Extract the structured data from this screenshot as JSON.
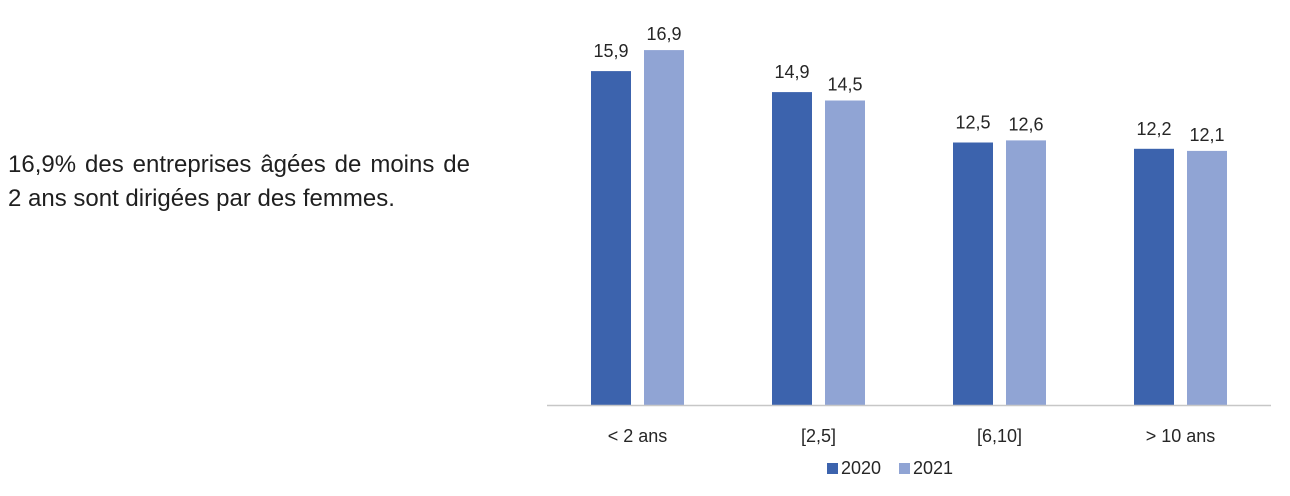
{
  "caption": "16,9% des entreprises âgées de moins de 2 ans sont dirigées par des femmes.",
  "colors": {
    "series_2020": "#3c63ad",
    "series_2021": "#90a4d4",
    "axis": "#c7c7c7",
    "text": "#262626"
  },
  "chart_data": {
    "type": "bar",
    "categories": [
      "< 2 ans",
      "[2,5]",
      "[6,10]",
      "> 10 ans"
    ],
    "series": [
      {
        "name": "2020",
        "values": [
          15.9,
          14.9,
          12.5,
          12.2
        ],
        "labels": [
          "15,9",
          "14,9",
          "12,5",
          "12,2"
        ]
      },
      {
        "name": "2021",
        "values": [
          16.9,
          14.5,
          12.6,
          12.1
        ],
        "labels": [
          "16,9",
          "14,5",
          "12,6",
          "12,1"
        ]
      }
    ],
    "ylim": [
      0,
      19.6
    ],
    "grid": false,
    "legend_position": "bottom",
    "y_axis_visible": false
  }
}
